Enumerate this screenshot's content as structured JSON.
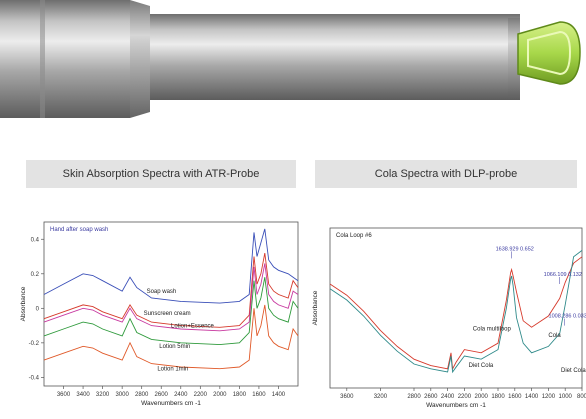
{
  "captions": {
    "left": "Skin Absorption Spectra with ATR-Probe",
    "right": "Cola Spectra with DLP-probe"
  },
  "colors": {
    "probe_body": "#9a9a9a",
    "probe_tip": "#a8d84a",
    "caption_bg": "#e3e3e3"
  },
  "chart_data": [
    {
      "type": "line",
      "title": "Hand after soap wash",
      "xlabel": "Wavenumbers cm -1",
      "ylabel": "Absorbance",
      "x_reversed": true,
      "xlim": [
        3800,
        1200
      ],
      "ylim": [
        -0.45,
        0.5
      ],
      "xticks": [
        3600,
        3400,
        3200,
        3000,
        2800,
        2600,
        2400,
        2200,
        2000,
        1800,
        1600,
        1400
      ],
      "yticks": [
        0.4,
        0.2,
        0,
        -0.2,
        -0.4
      ],
      "ytick_labels": [
        "0.4",
        "0.2",
        "0",
        "-0.2",
        "-0.4"
      ],
      "series": [
        {
          "name": "Soap wash",
          "color": "#3a4fb8",
          "x": [
            3800,
            3600,
            3400,
            3300,
            3200,
            3000,
            2920,
            2850,
            2700,
            2400,
            2000,
            1800,
            1700,
            1650,
            1620,
            1580,
            1540,
            1500,
            1450,
            1400,
            1300,
            1250,
            1200
          ],
          "y": [
            0.08,
            0.14,
            0.2,
            0.19,
            0.16,
            0.1,
            0.18,
            0.12,
            0.06,
            0.04,
            0.03,
            0.04,
            0.08,
            0.44,
            0.3,
            0.38,
            0.46,
            0.28,
            0.24,
            0.22,
            0.2,
            0.18,
            0.16
          ]
        },
        {
          "name": "Sunscreen cream",
          "color": "#d63a2c",
          "x": [
            3800,
            3600,
            3400,
            3300,
            3200,
            3000,
            2920,
            2850,
            2700,
            2400,
            2000,
            1800,
            1700,
            1650,
            1620,
            1580,
            1540,
            1500,
            1450,
            1400,
            1300,
            1250,
            1200
          ],
          "y": [
            -0.06,
            -0.02,
            0.02,
            0.01,
            -0.02,
            -0.06,
            0.02,
            -0.04,
            -0.08,
            -0.1,
            -0.11,
            -0.1,
            -0.04,
            0.3,
            0.14,
            0.2,
            0.32,
            0.14,
            0.1,
            0.08,
            0.06,
            0.16,
            0.12
          ]
        },
        {
          "name": "Lotion+Essence",
          "color": "#c83aa0",
          "x": [
            3800,
            3600,
            3400,
            3300,
            3200,
            3000,
            2920,
            2850,
            2700,
            2400,
            2000,
            1800,
            1700,
            1650,
            1620,
            1580,
            1540,
            1500,
            1450,
            1400,
            1300,
            1250,
            1200
          ],
          "y": [
            -0.08,
            -0.04,
            0.0,
            -0.01,
            -0.04,
            -0.08,
            0.0,
            -0.06,
            -0.1,
            -0.12,
            -0.13,
            -0.12,
            -0.08,
            0.24,
            0.08,
            0.14,
            0.26,
            0.08,
            0.04,
            0.02,
            0.0,
            0.1,
            0.08
          ]
        },
        {
          "name": "Lotion 5min",
          "color": "#2f9a3c",
          "x": [
            3800,
            3600,
            3400,
            3300,
            3200,
            3000,
            2920,
            2850,
            2700,
            2400,
            2000,
            1800,
            1700,
            1650,
            1620,
            1580,
            1540,
            1500,
            1450,
            1400,
            1300,
            1250,
            1200
          ],
          "y": [
            -0.16,
            -0.12,
            -0.08,
            -0.09,
            -0.12,
            -0.16,
            -0.06,
            -0.14,
            -0.18,
            -0.2,
            -0.21,
            -0.2,
            -0.14,
            0.16,
            0.0,
            0.06,
            0.18,
            0.0,
            -0.04,
            -0.06,
            -0.08,
            0.04,
            0.0
          ]
        },
        {
          "name": "Lotion 1min",
          "color": "#e05a2a",
          "x": [
            3800,
            3600,
            3400,
            3300,
            3200,
            3000,
            2920,
            2850,
            2700,
            2400,
            2000,
            1800,
            1700,
            1650,
            1620,
            1580,
            1540,
            1500,
            1450,
            1400,
            1300,
            1250,
            1200
          ],
          "y": [
            -0.3,
            -0.26,
            -0.22,
            -0.23,
            -0.26,
            -0.3,
            -0.2,
            -0.28,
            -0.32,
            -0.34,
            -0.35,
            -0.34,
            -0.3,
            0.0,
            -0.16,
            -0.1,
            0.02,
            -0.16,
            -0.2,
            -0.22,
            -0.24,
            -0.12,
            -0.16
          ]
        }
      ],
      "series_labels": [
        {
          "text": "Soap wash",
          "x": 2750,
          "y": 0.09
        },
        {
          "text": "Sunscreen cream",
          "x": 2780,
          "y": -0.04
        },
        {
          "text": "Lotion+Essence",
          "x": 2500,
          "y": -0.11
        },
        {
          "text": "Lotion 5min",
          "x": 2620,
          "y": -0.23
        },
        {
          "text": "Lotion 1min",
          "x": 2640,
          "y": -0.36
        }
      ]
    },
    {
      "type": "line",
      "title": "Cola Loop #6",
      "xlabel": "Wavenumbers cm -1",
      "ylabel": "Absorbance",
      "x_reversed": true,
      "xlim": [
        3800,
        800
      ],
      "ylim": [
        0,
        1
      ],
      "xticks": [
        3600,
        3200,
        2800,
        2600,
        2400,
        2200,
        2000,
        1800,
        1600,
        1400,
        1200,
        1000,
        800
      ],
      "series": [
        {
          "name": "Cola multiloop",
          "color": "#d63a2c",
          "x": [
            3800,
            3600,
            3400,
            3200,
            3000,
            2800,
            2600,
            2400,
            2360,
            2340,
            2300,
            2200,
            2000,
            1800,
            1700,
            1650,
            1638,
            1620,
            1580,
            1500,
            1400,
            1200,
            1066,
            1000,
            900,
            800
          ],
          "y": [
            0.65,
            0.58,
            0.48,
            0.36,
            0.26,
            0.18,
            0.14,
            0.12,
            0.22,
            0.12,
            0.16,
            0.24,
            0.22,
            0.28,
            0.55,
            0.72,
            0.74,
            0.7,
            0.6,
            0.42,
            0.38,
            0.45,
            0.56,
            0.66,
            0.78,
            0.82
          ]
        },
        {
          "name": "Diet Cola",
          "color": "#2f8a8a",
          "x": [
            3800,
            3600,
            3400,
            3200,
            3000,
            2800,
            2600,
            2400,
            2360,
            2340,
            2300,
            2200,
            2000,
            1800,
            1700,
            1650,
            1638,
            1620,
            1580,
            1500,
            1400,
            1200,
            1066,
            1000,
            900,
            800
          ],
          "y": [
            0.62,
            0.55,
            0.45,
            0.33,
            0.23,
            0.15,
            0.12,
            0.1,
            0.2,
            0.1,
            0.13,
            0.2,
            0.18,
            0.24,
            0.5,
            0.68,
            0.7,
            0.64,
            0.44,
            0.28,
            0.22,
            0.26,
            0.34,
            0.52,
            0.82,
            0.86
          ]
        }
      ],
      "annotations": [
        {
          "text": "1638.929  0.652",
          "x": 1638,
          "y": 0.86,
          "color": "#3a3aa0"
        },
        {
          "text": "1066.109  0.132",
          "x": 1066,
          "y": 0.7,
          "color": "#3a3aa0"
        },
        {
          "text": "1008.286  0.033",
          "x": 1008,
          "y": 0.44,
          "color": "#3a3aa0"
        }
      ],
      "series_labels": [
        {
          "text": "Cola multiloop",
          "x": 2100,
          "y": 0.36
        },
        {
          "text": "Cola",
          "x": 1200,
          "y": 0.32
        },
        {
          "text": "Diet Cola",
          "x": 2150,
          "y": 0.13
        },
        {
          "text": "Diet Cola",
          "x": 1050,
          "y": 0.1
        }
      ]
    }
  ]
}
